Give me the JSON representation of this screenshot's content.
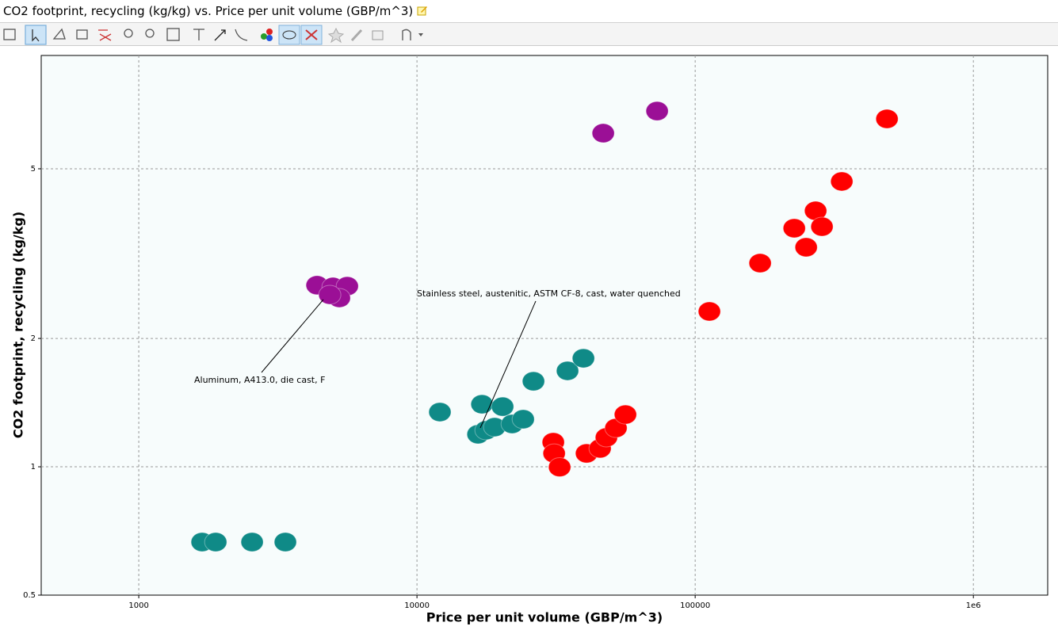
{
  "chart_data": {
    "type": "scatter",
    "title": "CO2 footprint, recycling (kg/kg) vs. Price per unit volume (GBP/m^3)",
    "xlabel": "Price per unit volume (GBP/m^3)",
    "ylabel": "CO2 footprint, recycling (kg/kg)",
    "xscale": "log",
    "yscale": "log",
    "xlim": [
      446,
      1850000
    ],
    "ylim": [
      0.5,
      9.22
    ],
    "xticks": [
      1000,
      10000,
      100000,
      {
        "value": 1000000,
        "label": "1e6"
      }
    ],
    "yticks": [
      0.5,
      1,
      2,
      5
    ],
    "grid": true,
    "series": [
      {
        "color": "#0f8a87",
        "x": [
          12090,
          17130,
          20310,
          26230,
          34770,
          39660,
          16580,
          17700,
          19020,
          21980,
          24090,
          1690,
          1890,
          2555,
          3365
        ],
        "values": [
          1.344,
          1.402,
          1.384,
          1.587,
          1.679,
          1.797,
          1.192,
          1.218,
          1.239,
          1.26,
          1.293,
          0.666,
          0.666,
          0.666,
          0.666
        ]
      },
      {
        "color": "#9b0f96",
        "x": [
          4375,
          4990,
          5615,
          5258,
          4860,
          46720,
          72980
        ],
        "values": [
          2.666,
          2.642,
          2.653,
          2.489,
          2.532,
          6.06,
          6.83
        ]
      },
      {
        "color": "#ff0000",
        "x": [
          112500,
          171200,
          227100,
          271000,
          285600,
          250600,
          336500,
          489200,
          30900,
          31120,
          32570,
          40710,
          45510,
          47970,
          51900,
          56150
        ],
        "values": [
          2.314,
          3.004,
          3.627,
          3.984,
          3.658,
          3.273,
          4.67,
          6.546,
          1.142,
          1.075,
          0.998,
          1.075,
          1.104,
          1.172,
          1.233,
          1.326
        ]
      }
    ],
    "annotations": [
      {
        "text": "Aluminum, A413.0, die cast, F"
      },
      {
        "text": "Stainless steel, austenitic, ASTM CF-8, cast, water quenched"
      }
    ]
  }
}
